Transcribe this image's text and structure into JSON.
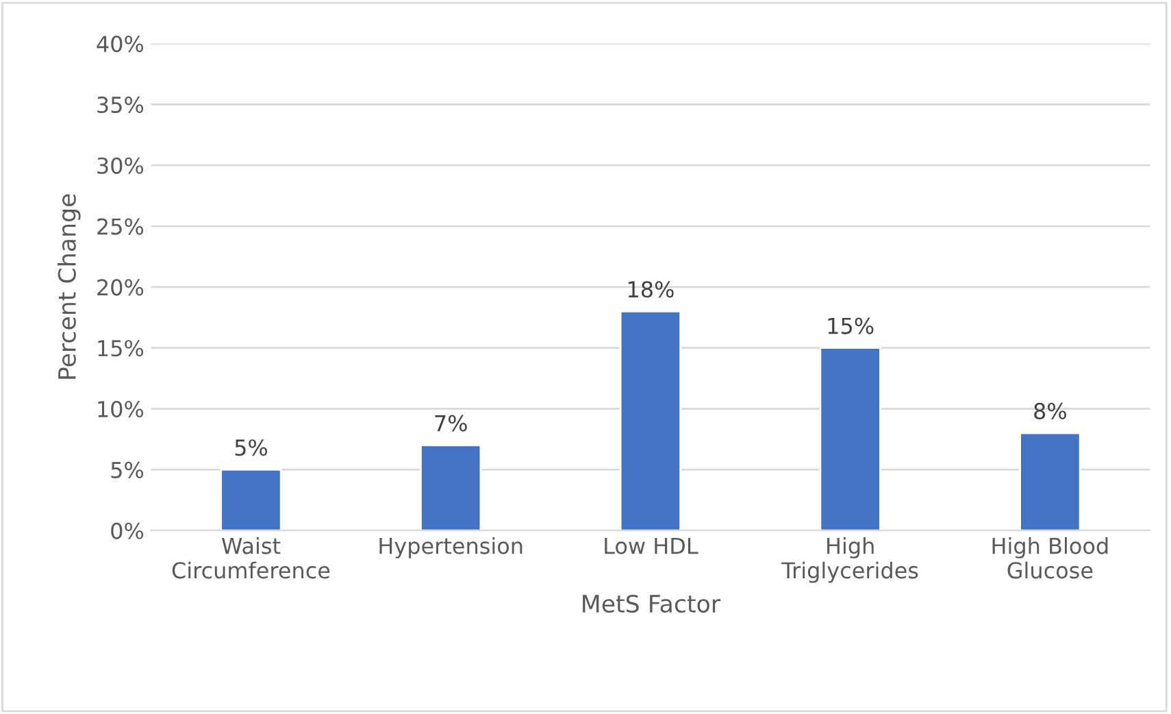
{
  "chart_data": {
    "type": "bar",
    "xlabel": "MetS Factor",
    "ylabel": "Percent Change",
    "categories": [
      "Waist\nCircumference",
      "Hypertension",
      "Low HDL",
      "High\nTriglycerides",
      "High Blood\nGlucose"
    ],
    "values": [
      5,
      7,
      18,
      15,
      8
    ],
    "color": "#4472c4",
    "value_labels": [
      "5%",
      "7%",
      "18%",
      "15%",
      "8%"
    ],
    "ylim": [
      0,
      40
    ],
    "yticks": [
      {
        "value": 0,
        "label": "0%"
      },
      {
        "value": 5,
        "label": "5%"
      },
      {
        "value": 10,
        "label": "10%"
      },
      {
        "value": 15,
        "label": "15%"
      },
      {
        "value": 20,
        "label": "20%"
      },
      {
        "value": 25,
        "label": "25%"
      },
      {
        "value": 30,
        "label": "30%"
      },
      {
        "value": 35,
        "label": "35%"
      },
      {
        "value": 40,
        "label": "40%"
      }
    ],
    "grid": "y",
    "legend": false
  }
}
